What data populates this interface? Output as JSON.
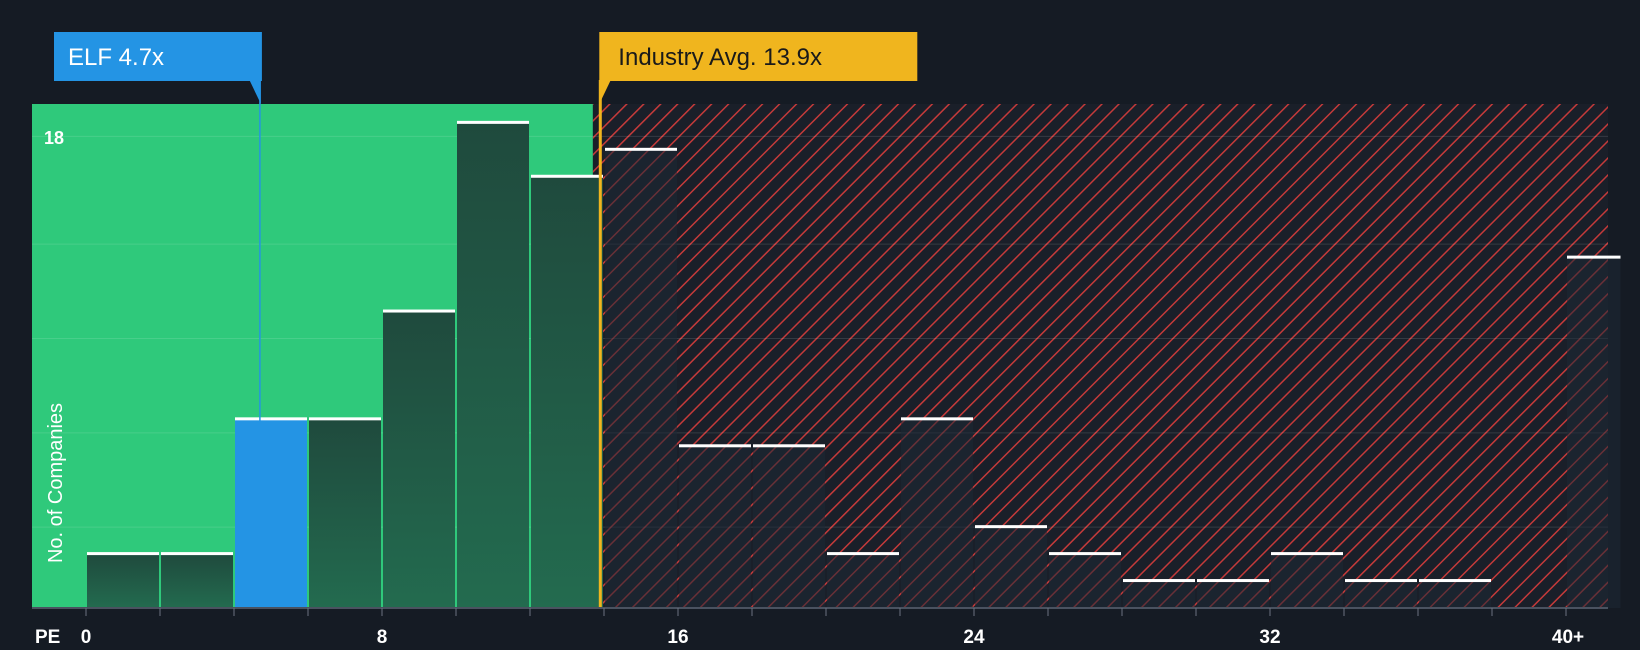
{
  "chart_data": {
    "type": "bar",
    "xlabel": "PE",
    "ylabel": "No. of Companies",
    "x_ticks": [
      "0",
      "8",
      "16",
      "24",
      "32",
      "40+"
    ],
    "x_tick_values": [
      0,
      8,
      16,
      24,
      32,
      40
    ],
    "y_tick_labels": [
      "18"
    ],
    "y_tick_values": [
      18
    ],
    "xlim": [
      0,
      41.5
    ],
    "ylim": [
      0,
      18.7
    ],
    "bin_width": 2,
    "bins": [
      {
        "x0": 0,
        "x1": 2,
        "value": 2
      },
      {
        "x0": 2,
        "x1": 4,
        "value": 2
      },
      {
        "x0": 4,
        "x1": 6,
        "value": 7,
        "highlight": true
      },
      {
        "x0": 6,
        "x1": 8,
        "value": 7
      },
      {
        "x0": 8,
        "x1": 10,
        "value": 11
      },
      {
        "x0": 10,
        "x1": 12,
        "value": 18
      },
      {
        "x0": 12,
        "x1": 14,
        "value": 16
      },
      {
        "x0": 14,
        "x1": 16,
        "value": 17
      },
      {
        "x0": 16,
        "x1": 18,
        "value": 6
      },
      {
        "x0": 18,
        "x1": 20,
        "value": 6
      },
      {
        "x0": 20,
        "x1": 22,
        "value": 2
      },
      {
        "x0": 22,
        "x1": 24,
        "value": 7
      },
      {
        "x0": 24,
        "x1": 26,
        "value": 3
      },
      {
        "x0": 26,
        "x1": 28,
        "value": 2
      },
      {
        "x0": 28,
        "x1": 30,
        "value": 1
      },
      {
        "x0": 30,
        "x1": 32,
        "value": 1
      },
      {
        "x0": 32,
        "x1": 34,
        "value": 2
      },
      {
        "x0": 34,
        "x1": 36,
        "value": 1
      },
      {
        "x0": 36,
        "x1": 38,
        "value": 1
      },
      {
        "x0": 40,
        "x1": 41.5,
        "value": 13
      }
    ],
    "company": {
      "label": "ELF 4.7x",
      "value": 4.7
    },
    "industry_avg": {
      "label": "Industry Avg. 13.9x",
      "value": 13.9
    },
    "colors": {
      "background": "#151b24",
      "favorable_zone": "#2fc97b",
      "unfavorable_zone": "#e8433f",
      "bar_dark": "#1f4a3d",
      "highlight_bar": "#2494e4",
      "company_label": "#2494e4",
      "industry_label": "#f0b51e",
      "bar_cap": "#ffffff"
    }
  }
}
